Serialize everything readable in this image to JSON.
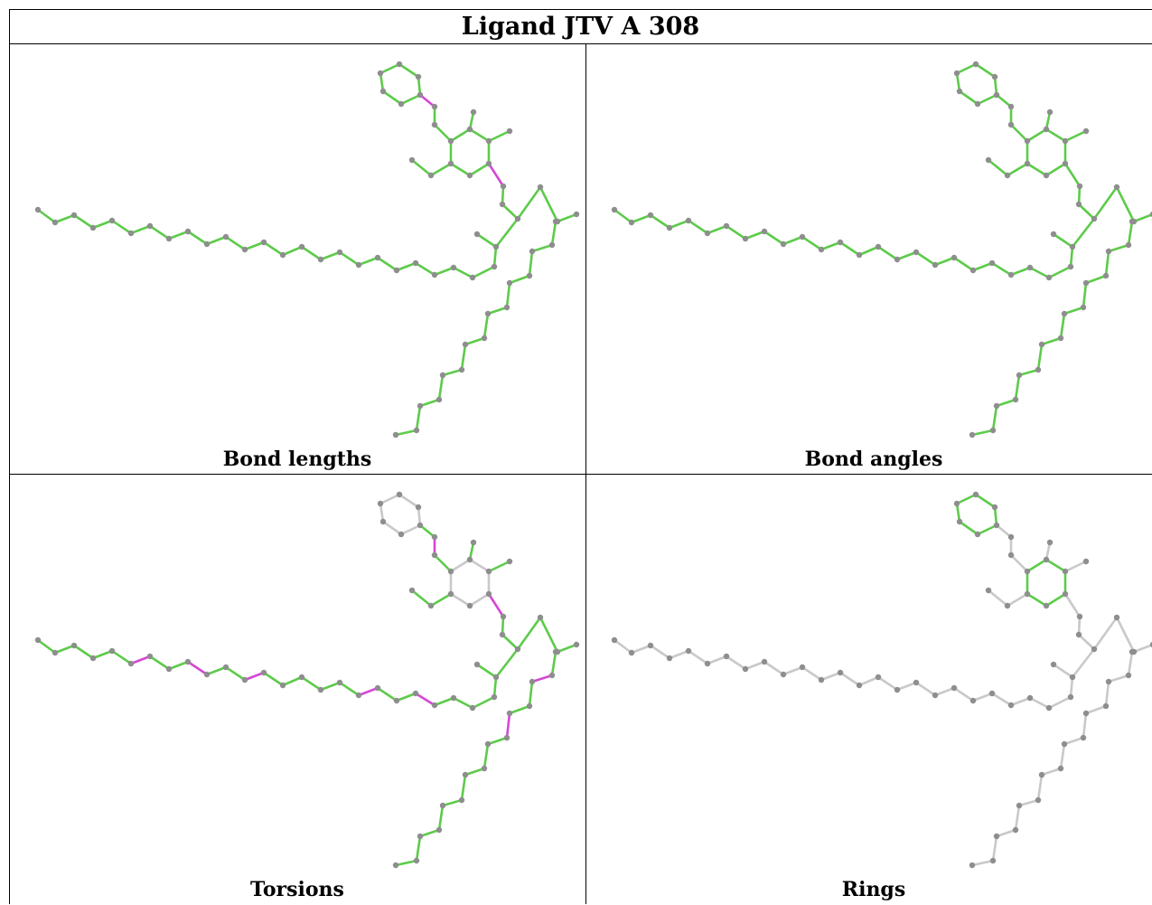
{
  "title": "Ligand JTV A 308",
  "colors": {
    "ok": "#5dcb4a",
    "outlier": "#d548d5",
    "neutral": "#c9c9c9",
    "atom": "#8e8e8e"
  },
  "panels": [
    {
      "caption": "Bond lengths",
      "outliers": [
        "ph1-link",
        "ar1-link"
      ],
      "neutral": []
    },
    {
      "caption": "Bond angles",
      "outliers": [],
      "neutral": []
    },
    {
      "caption": "Torsions",
      "outliers": [
        "link1",
        "ar1-link",
        "ch1-6-7",
        "ch1-9-10",
        "ch1-12-13",
        "ch1-18-19",
        "ch1-21-22",
        "ch3-1-2",
        "ch3-4-5"
      ],
      "neutral": [
        "phenyl",
        "aromatic"
      ]
    },
    {
      "caption": "Rings",
      "outliers": [],
      "neutral": [
        "chains"
      ]
    }
  ]
}
